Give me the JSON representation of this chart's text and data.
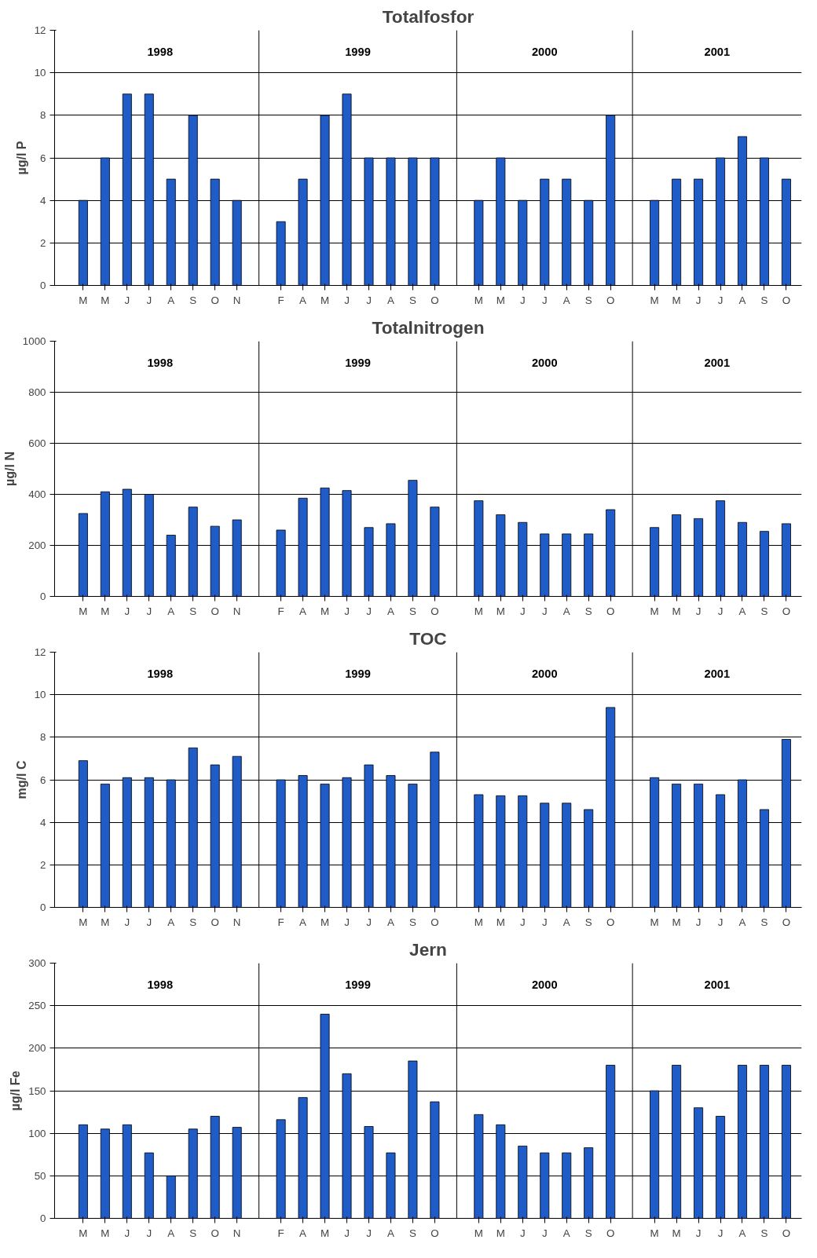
{
  "chart_data": [
    {
      "type": "bar",
      "title": "Totalfosfor",
      "ylabel": "µg/l P",
      "color": "#1f5cc8",
      "grid": true,
      "ylim": [
        0,
        12
      ],
      "yticks": [
        0,
        2,
        4,
        6,
        8,
        10,
        12
      ],
      "categories": [
        "M",
        "M",
        "J",
        "J",
        "A",
        "S",
        "O",
        "N",
        null,
        "F",
        "A",
        "M",
        "J",
        "J",
        "A",
        "S",
        "O",
        null,
        "M",
        "M",
        "J",
        "J",
        "A",
        "S",
        "O",
        null,
        "M",
        "M",
        "J",
        "J",
        "A",
        "S",
        "O"
      ],
      "values": [
        4,
        6,
        9,
        9,
        5,
        8,
        5,
        4,
        null,
        3,
        5,
        8,
        9,
        6,
        6,
        6,
        6,
        null,
        4,
        6,
        4,
        5,
        5,
        4,
        8,
        null,
        4,
        5,
        5,
        6,
        7,
        6,
        5
      ],
      "annotations": [
        "1998",
        "1999",
        "2000",
        "2001"
      ]
    },
    {
      "type": "bar",
      "title": "Totalnitrogen",
      "ylabel": "µg/l N",
      "color": "#1f5cc8",
      "grid": true,
      "ylim": [
        0,
        1000
      ],
      "yticks": [
        0,
        200,
        400,
        600,
        800,
        1000
      ],
      "categories": [
        "M",
        "M",
        "J",
        "J",
        "A",
        "S",
        "O",
        "N",
        null,
        "F",
        "A",
        "M",
        "J",
        "J",
        "A",
        "S",
        "O",
        null,
        "M",
        "M",
        "J",
        "J",
        "A",
        "S",
        "O",
        null,
        "M",
        "M",
        "J",
        "J",
        "A",
        "S",
        "O"
      ],
      "values": [
        325,
        410,
        420,
        400,
        240,
        350,
        275,
        300,
        null,
        260,
        385,
        425,
        415,
        270,
        285,
        455,
        350,
        null,
        375,
        320,
        290,
        245,
        245,
        245,
        340,
        null,
        270,
        320,
        305,
        375,
        290,
        255,
        285
      ],
      "annotations": [
        "1998",
        "1999",
        "2000",
        "2001"
      ]
    },
    {
      "type": "bar",
      "title": "TOC",
      "ylabel": "mg/l C",
      "color": "#1f5cc8",
      "grid": true,
      "ylim": [
        0,
        12
      ],
      "yticks": [
        0,
        2,
        4,
        6,
        8,
        10,
        12
      ],
      "categories": [
        "M",
        "M",
        "J",
        "J",
        "A",
        "S",
        "O",
        "N",
        null,
        "F",
        "A",
        "M",
        "J",
        "J",
        "A",
        "S",
        "O",
        null,
        "M",
        "M",
        "J",
        "J",
        "A",
        "S",
        "O",
        null,
        "M",
        "M",
        "J",
        "J",
        "A",
        "S",
        "O"
      ],
      "values": [
        6.9,
        5.8,
        6.1,
        6.1,
        6.0,
        7.5,
        6.7,
        7.1,
        null,
        6.0,
        6.2,
        5.8,
        6.1,
        6.7,
        6.2,
        5.8,
        7.3,
        null,
        5.3,
        5.25,
        5.25,
        4.9,
        4.9,
        4.6,
        9.4,
        null,
        6.1,
        5.8,
        5.8,
        5.3,
        6.0,
        4.6,
        7.9
      ],
      "annotations": [
        "1998",
        "1999",
        "2000",
        "2001"
      ]
    },
    {
      "type": "bar",
      "title": "Jern",
      "ylabel": "µg/l Fe",
      "color": "#1f5cc8",
      "grid": true,
      "ylim": [
        0,
        300
      ],
      "yticks": [
        0,
        50,
        100,
        150,
        200,
        250,
        300
      ],
      "categories": [
        "M",
        "M",
        "J",
        "J",
        "A",
        "S",
        "O",
        "N",
        null,
        "F",
        "A",
        "M",
        "J",
        "J",
        "A",
        "S",
        "O",
        null,
        "M",
        "M",
        "J",
        "J",
        "A",
        "S",
        "O",
        null,
        "M",
        "M",
        "J",
        "J",
        "A",
        "S",
        "O"
      ],
      "values": [
        110,
        105,
        110,
        77,
        50,
        105,
        120,
        107,
        null,
        116,
        142,
        240,
        170,
        108,
        77,
        185,
        137,
        null,
        122,
        110,
        85,
        77,
        77,
        83,
        180,
        null,
        150,
        180,
        130,
        120,
        180,
        180,
        180
      ],
      "annotations": [
        "1998",
        "1999",
        "2000",
        "2001"
      ]
    }
  ]
}
